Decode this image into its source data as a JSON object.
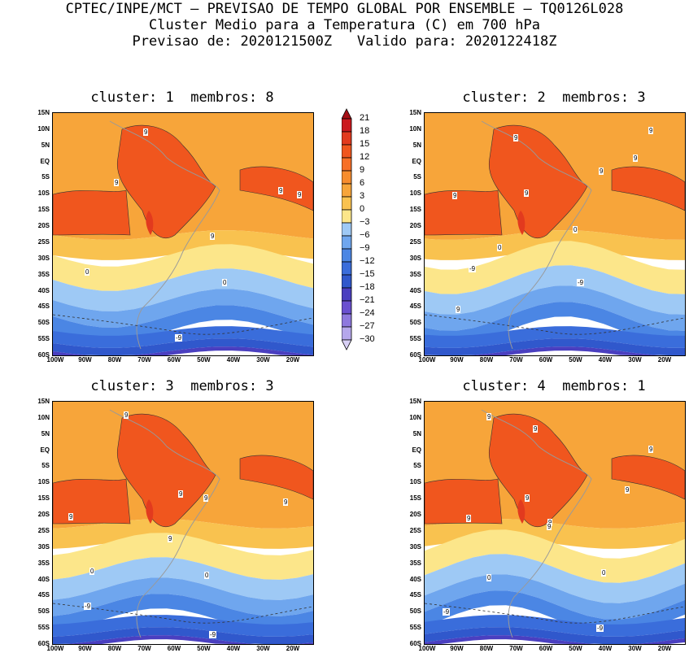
{
  "header": {
    "line1": "CPTEC/INPE/MCT – PREVISAO DE TEMPO GLOBAL POR ENSEMBLE – TQ0126L028",
    "line2": "Cluster Medio para a Temperatura (C) em 700 hPa",
    "line3": "Previsao de: 2020121500Z   Valido para: 2020122418Z"
  },
  "panels": [
    {
      "title": "cluster: 1  membros: 8",
      "labels": [
        "9",
        "9",
        "9",
        "9",
        "9",
        "0",
        "0",
        "-9"
      ]
    },
    {
      "title": "cluster: 2  membros: 3",
      "labels": [
        "9",
        "9",
        "9",
        "9",
        "9",
        "9",
        "0",
        "0",
        "-9",
        "-9",
        "9"
      ]
    },
    {
      "title": "cluster: 3  membros: 3",
      "labels": [
        "9",
        "9",
        "9",
        "9",
        "9",
        "9",
        "0",
        "0",
        "-9",
        "-9"
      ]
    },
    {
      "title": "cluster: 4  membros: 1",
      "labels": [
        "9",
        "9",
        "9",
        "9",
        "9",
        "9",
        "9",
        "9",
        "0",
        "0",
        "-9",
        "-9"
      ]
    }
  ],
  "lat_ticks": [
    "15N",
    "10N",
    "5N",
    "EQ",
    "5S",
    "10S",
    "15S",
    "20S",
    "25S",
    "30S",
    "35S",
    "40S",
    "45S",
    "50S",
    "55S",
    "60S"
  ],
  "lon_ticks": [
    "100W",
    "90W",
    "80W",
    "70W",
    "60W",
    "50W",
    "40W",
    "30W",
    "20W"
  ],
  "colorbar": {
    "labels": [
      "21",
      "18",
      "15",
      "12",
      "9",
      "6",
      "3",
      "0",
      "−3",
      "−6",
      "−9",
      "−12",
      "−15",
      "−18",
      "−21",
      "−24",
      "−27",
      "−30"
    ],
    "colors": [
      "#a50f15",
      "#cb181d",
      "#e23a1e",
      "#f0561e",
      "#f76f26",
      "#f78d2e",
      "#f7a53a",
      "#f9c24f",
      "#fce68a",
      "#9ec9f5",
      "#6fa6ee",
      "#4b86e4",
      "#3a6ddb",
      "#3058cc",
      "#4a3fc0",
      "#6a4fd0",
      "#8e78de",
      "#b5a7eb",
      "#d8d0f5"
    ]
  }
}
